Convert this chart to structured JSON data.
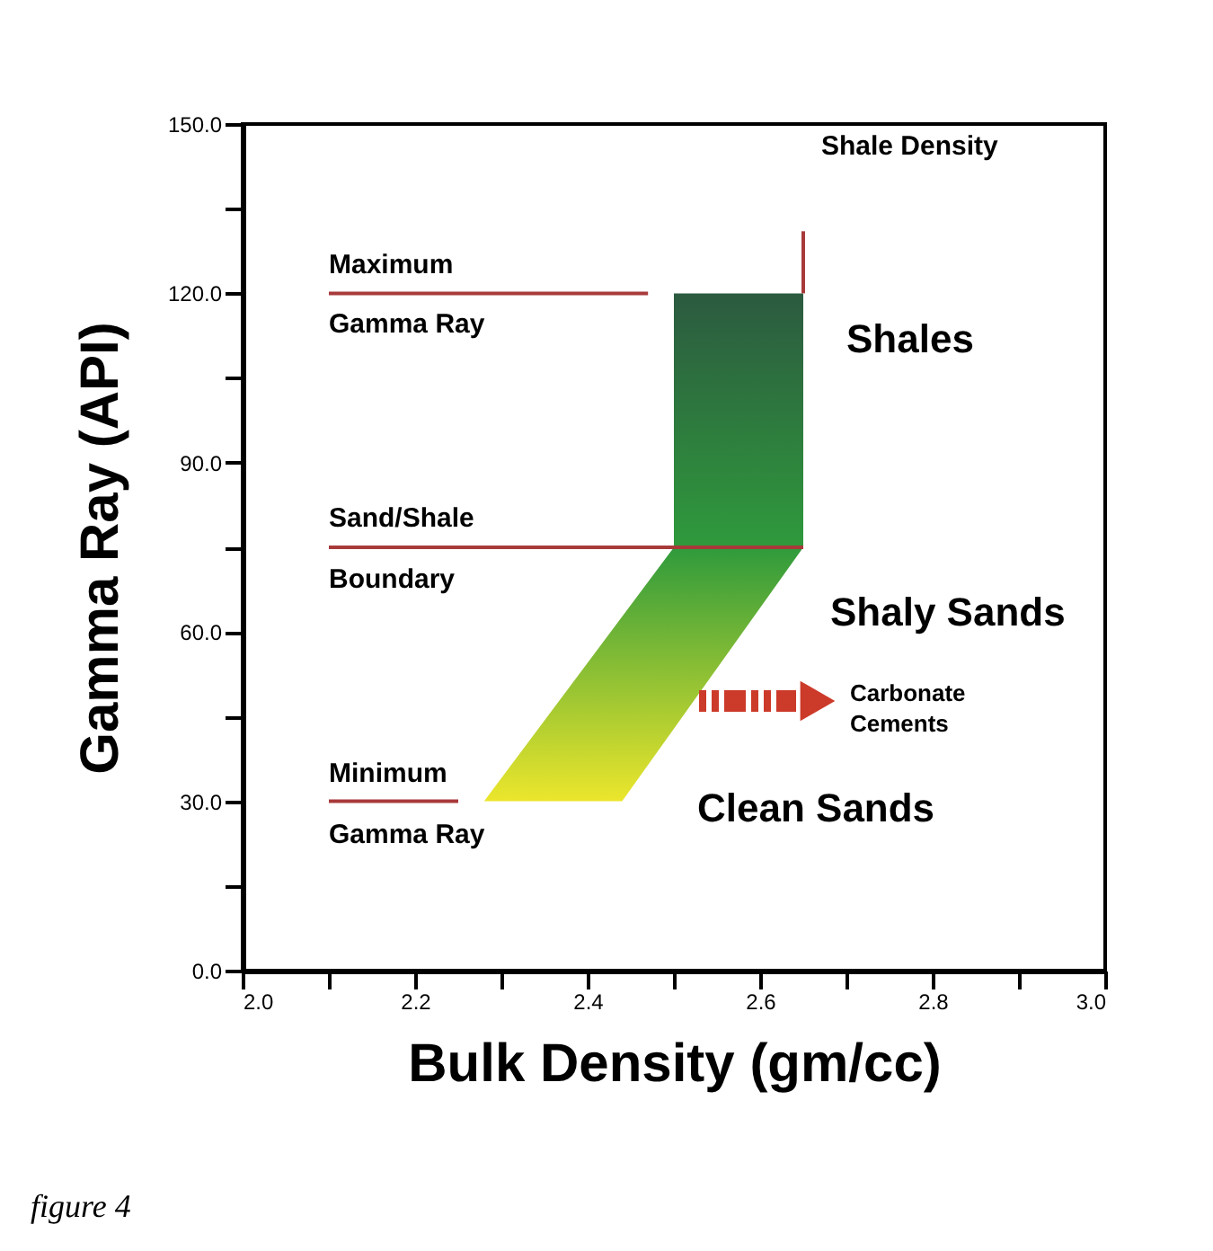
{
  "chart_data": {
    "type": "area",
    "xlabel": "Bulk Density (gm/cc)",
    "ylabel": "Gamma Ray  (API)",
    "xlim": [
      2.0,
      3.0
    ],
    "ylim": [
      0,
      150
    ],
    "xticks": [
      {
        "value": 2.0,
        "label": "2.0"
      },
      {
        "value": 2.1,
        "label": null
      },
      {
        "value": 2.2,
        "label": "2.2"
      },
      {
        "value": 2.3,
        "label": null
      },
      {
        "value": 2.4,
        "label": "2.4"
      },
      {
        "value": 2.5,
        "label": null
      },
      {
        "value": 2.6,
        "label": "2.6"
      },
      {
        "value": 2.7,
        "label": null
      },
      {
        "value": 2.8,
        "label": "2.8"
      },
      {
        "value": 2.9,
        "label": null
      },
      {
        "value": 3.0,
        "label": "3.0"
      }
    ],
    "yticks": [
      {
        "value": 0,
        "label": "0.0"
      },
      {
        "value": 15,
        "label": null
      },
      {
        "value": 30,
        "label": "30.0"
      },
      {
        "value": 45,
        "label": null
      },
      {
        "value": 60,
        "label": "60.0"
      },
      {
        "value": 75,
        "label": null
      },
      {
        "value": 90,
        "label": "90.0"
      },
      {
        "value": 105,
        "label": null
      },
      {
        "value": 120,
        "label": "120.0"
      },
      {
        "value": 135,
        "label": null
      },
      {
        "value": 150,
        "label": "150.0"
      }
    ],
    "series": [
      {
        "x": [
          2.28,
          2.44,
          2.65,
          2.65,
          2.5,
          2.5,
          2.28
        ],
        "values": [
          30,
          30,
          75,
          120,
          120,
          75,
          30
        ],
        "colors": [
          "#ece62c",
          "#ece62c",
          "#2f9a3c",
          "#2c5a40",
          "#2c5a40",
          "#2f9a3c",
          "#ece62c"
        ]
      },
      {
        "type": "line",
        "x": [
          2.1,
          2.47
        ],
        "values": [
          120,
          120
        ],
        "color": "#a83a3a"
      },
      {
        "type": "line",
        "x": [
          2.1,
          2.65
        ],
        "values": [
          75,
          75
        ],
        "color": "#a83a3a"
      },
      {
        "type": "line",
        "x": [
          2.1,
          2.25
        ],
        "values": [
          30,
          30
        ],
        "color": "#a83a3a"
      },
      {
        "type": "line",
        "x": [
          2.65,
          2.65
        ],
        "values": [
          120,
          131
        ],
        "color": "#a83a3a"
      }
    ],
    "annotations": [
      "Maximum",
      "Gamma Ray",
      "Sand/Shale",
      "Boundary",
      "Minimum",
      "Gamma Ray",
      "Shale Density",
      "Shales",
      "Shaly Sands",
      "Clean Sands",
      "Carbonate\nCements",
      "figure 4"
    ]
  }
}
